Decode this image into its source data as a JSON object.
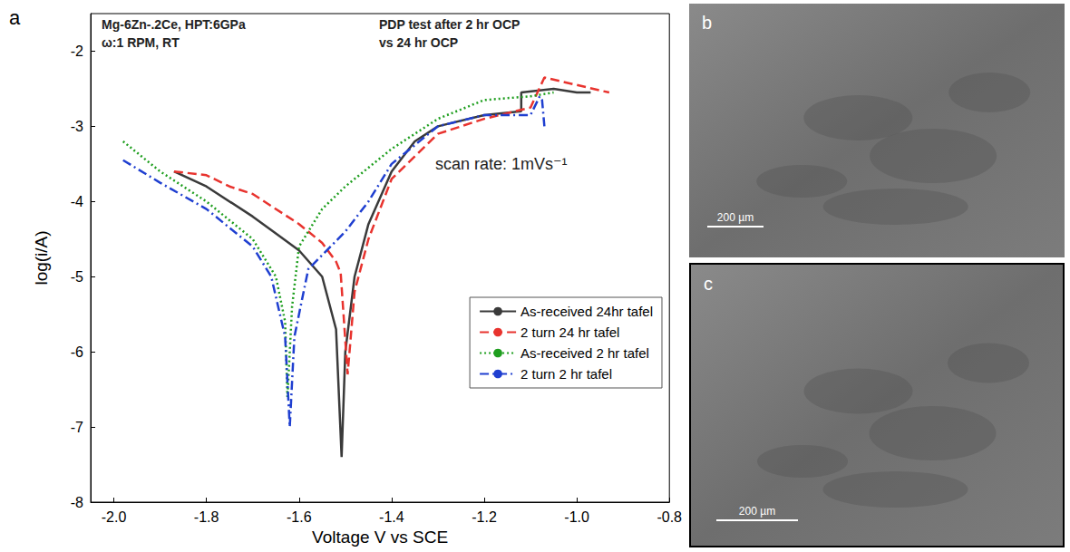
{
  "chart_data": {
    "type": "line",
    "panel_label": "a",
    "x_label": "Voltage V vs SCE",
    "y_label": "log(i/A)",
    "annotations": [
      "Mg-6Zn-.2Ce, HPT:6GPa",
      "ω:1 RPM, RT",
      "PDP test after 2 hr OCP",
      "vs 24 hr OCP",
      "scan rate: 1mVs⁻¹"
    ],
    "xlim": [
      -2.05,
      -0.8
    ],
    "xticks": [
      {
        "value": -2.0,
        "label": "-2.0"
      },
      -1.8,
      -1.6,
      -1.4,
      -1.2,
      {
        "value": -1.0,
        "label": "-1.0"
      },
      -0.8
    ],
    "ylim": [
      -8,
      -1.5
    ],
    "yticks": [
      -8,
      -7,
      -6,
      -5,
      -4,
      -3,
      -2
    ],
    "grid": false,
    "legend": "right",
    "series": [
      {
        "name": "As-received 24hr tafel",
        "color": "#3a3a3a",
        "line_style": "solid",
        "marker": "none",
        "x": [
          -1.87,
          -1.8,
          -1.7,
          -1.6,
          -1.55,
          -1.52,
          -1.508,
          -1.5,
          -1.48,
          -1.45,
          -1.4,
          -1.35,
          -1.3,
          -1.2,
          -1.12,
          -1.12,
          -1.05,
          -1.0,
          -0.97
        ],
        "values": [
          -3.6,
          -3.8,
          -4.2,
          -4.65,
          -5.0,
          -5.7,
          -7.4,
          -6.0,
          -5.0,
          -4.3,
          -3.6,
          -3.2,
          -3.0,
          -2.85,
          -2.8,
          -2.55,
          -2.5,
          -2.55,
          -2.55
        ]
      },
      {
        "name": "2 turn 24 hr tafel",
        "color": "#e8332e",
        "line_style": "dashed",
        "marker": "none",
        "x": [
          -1.87,
          -1.8,
          -1.75,
          -1.7,
          -1.6,
          -1.55,
          -1.52,
          -1.51,
          -1.495,
          -1.48,
          -1.45,
          -1.4,
          -1.3,
          -1.2,
          -1.1,
          -1.07,
          -1.0,
          -0.93
        ],
        "values": [
          -3.6,
          -3.65,
          -3.8,
          -3.9,
          -4.3,
          -4.55,
          -4.8,
          -4.95,
          -6.3,
          -5.2,
          -4.5,
          -3.7,
          -3.1,
          -2.9,
          -2.75,
          -2.35,
          -2.45,
          -2.55
        ]
      },
      {
        "name": "As-received 2 hr tafel",
        "color": "#1e9e1e",
        "line_style": "dotted",
        "marker": "none",
        "x": [
          -1.98,
          -1.9,
          -1.8,
          -1.7,
          -1.65,
          -1.63,
          -1.625,
          -1.615,
          -1.6,
          -1.55,
          -1.5,
          -1.4,
          -1.3,
          -1.2,
          -1.1,
          -1.05
        ],
        "values": [
          -3.2,
          -3.6,
          -4.0,
          -4.5,
          -5.0,
          -5.6,
          -6.6,
          -5.4,
          -4.6,
          -4.1,
          -3.8,
          -3.3,
          -2.9,
          -2.65,
          -2.6,
          -2.55
        ]
      },
      {
        "name": "2 turn 2 hr tafel",
        "color": "#1f3fd0",
        "line_style": "dashdot",
        "marker": "none",
        "x": [
          -1.98,
          -1.9,
          -1.8,
          -1.7,
          -1.66,
          -1.63,
          -1.62,
          -1.61,
          -1.58,
          -1.5,
          -1.45,
          -1.4,
          -1.3,
          -1.2,
          -1.1,
          -1.08,
          -1.075,
          -1.07
        ],
        "values": [
          -3.45,
          -3.75,
          -4.1,
          -4.6,
          -5.0,
          -5.8,
          -7.0,
          -5.8,
          -4.9,
          -4.4,
          -4.0,
          -3.5,
          -3.0,
          -2.85,
          -2.85,
          -2.6,
          -2.65,
          -3.0
        ]
      }
    ]
  },
  "panels": [
    {
      "label": "b",
      "scale_bar": "200 µm"
    },
    {
      "label": "c",
      "scale_bar": "200 µm"
    }
  ]
}
